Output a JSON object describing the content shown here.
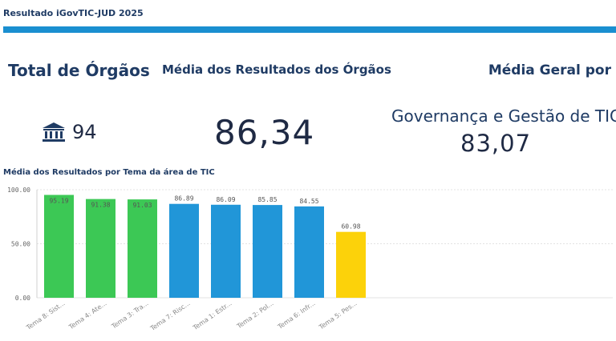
{
  "header": {
    "title": "Resultado iGovTIC-JUD 2025",
    "bar_color": "#1a8fd0"
  },
  "kpi_orgaos": {
    "title": "Total de Órgãos",
    "value": "94",
    "icon": "institution-icon"
  },
  "kpi_media": {
    "title": "Média dos Resultados dos Órgãos",
    "value": "86,34"
  },
  "kpi_geral": {
    "title": "Média Geral por",
    "subtitle": "Governança e Gestão de TIC",
    "value": "83,07"
  },
  "chart_title": "Média dos Resultados por Tema da área de TIC",
  "chart_data": {
    "type": "bar",
    "title": "Média dos Resultados por Tema da área de TIC",
    "categories": [
      "Tema 8: Sist...",
      "Tema 4: Ate...",
      "Tema 3: Tra...",
      "Tema 7: Risc...",
      "Tema 1: Estr...",
      "Tema 2: Pol...",
      "Tema 6: Infr...",
      "Tema 5: Pes..."
    ],
    "values": [
      95.19,
      91.38,
      91.03,
      86.89,
      86.09,
      85.85,
      84.55,
      60.98
    ],
    "value_labels": [
      "95.19",
      "91.38",
      "91.03",
      "86.89",
      "86.09",
      "85.85",
      "84.55",
      "60.98"
    ],
    "colors": [
      "#3cc855",
      "#3cc855",
      "#3cc855",
      "#2196d8",
      "#2196d8",
      "#2196d8",
      "#2196d8",
      "#fcd20a"
    ],
    "yticks": [
      "0.00",
      "50.00",
      "100.00"
    ],
    "ytick_values": [
      0,
      50,
      100
    ],
    "ylim": [
      0,
      100
    ],
    "grid": true
  }
}
